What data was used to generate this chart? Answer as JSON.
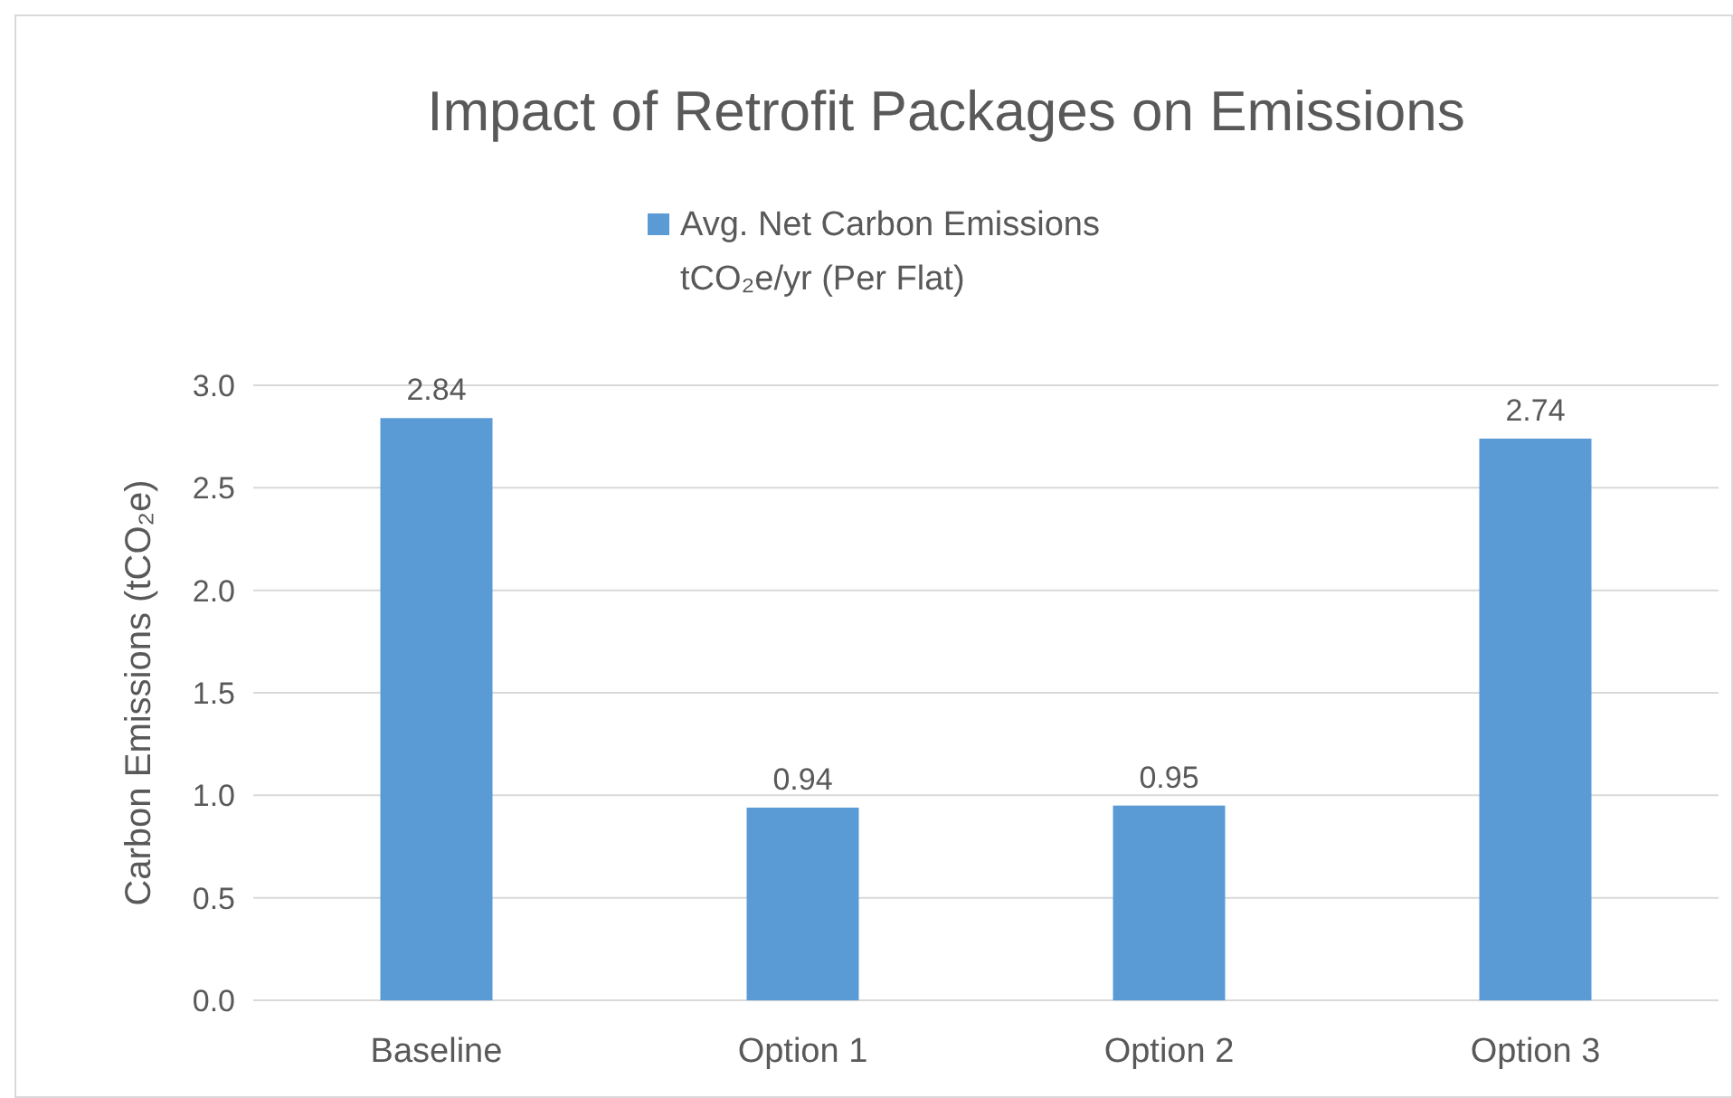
{
  "chart_data": {
    "type": "bar",
    "title": "Impact of Retrofit Packages on Emissions",
    "ylabel": "Carbon Emissions (tCO₂e)",
    "categories": [
      "Baseline",
      "Option 1",
      "Option 2",
      "Option 3"
    ],
    "series": [
      {
        "name": "Avg. Net Carbon Emissions tCO₂e/yr (Per Flat)",
        "color": "#5b9bd5",
        "values": [
          2.84,
          0.94,
          0.95,
          2.74
        ]
      }
    ],
    "ylim": [
      0,
      3.0
    ],
    "yticks": [
      {
        "value": 0,
        "label": "0.0"
      },
      {
        "value": 0.5,
        "label": "0.5"
      },
      {
        "value": 1,
        "label": "1.0"
      },
      {
        "value": 1.5,
        "label": "1.5"
      },
      {
        "value": 2,
        "label": "2.0"
      },
      {
        "value": 2.5,
        "label": "2.5"
      },
      {
        "value": 3,
        "label": "3.0"
      }
    ],
    "grid": "y",
    "legend": "top",
    "data_labels": true
  }
}
